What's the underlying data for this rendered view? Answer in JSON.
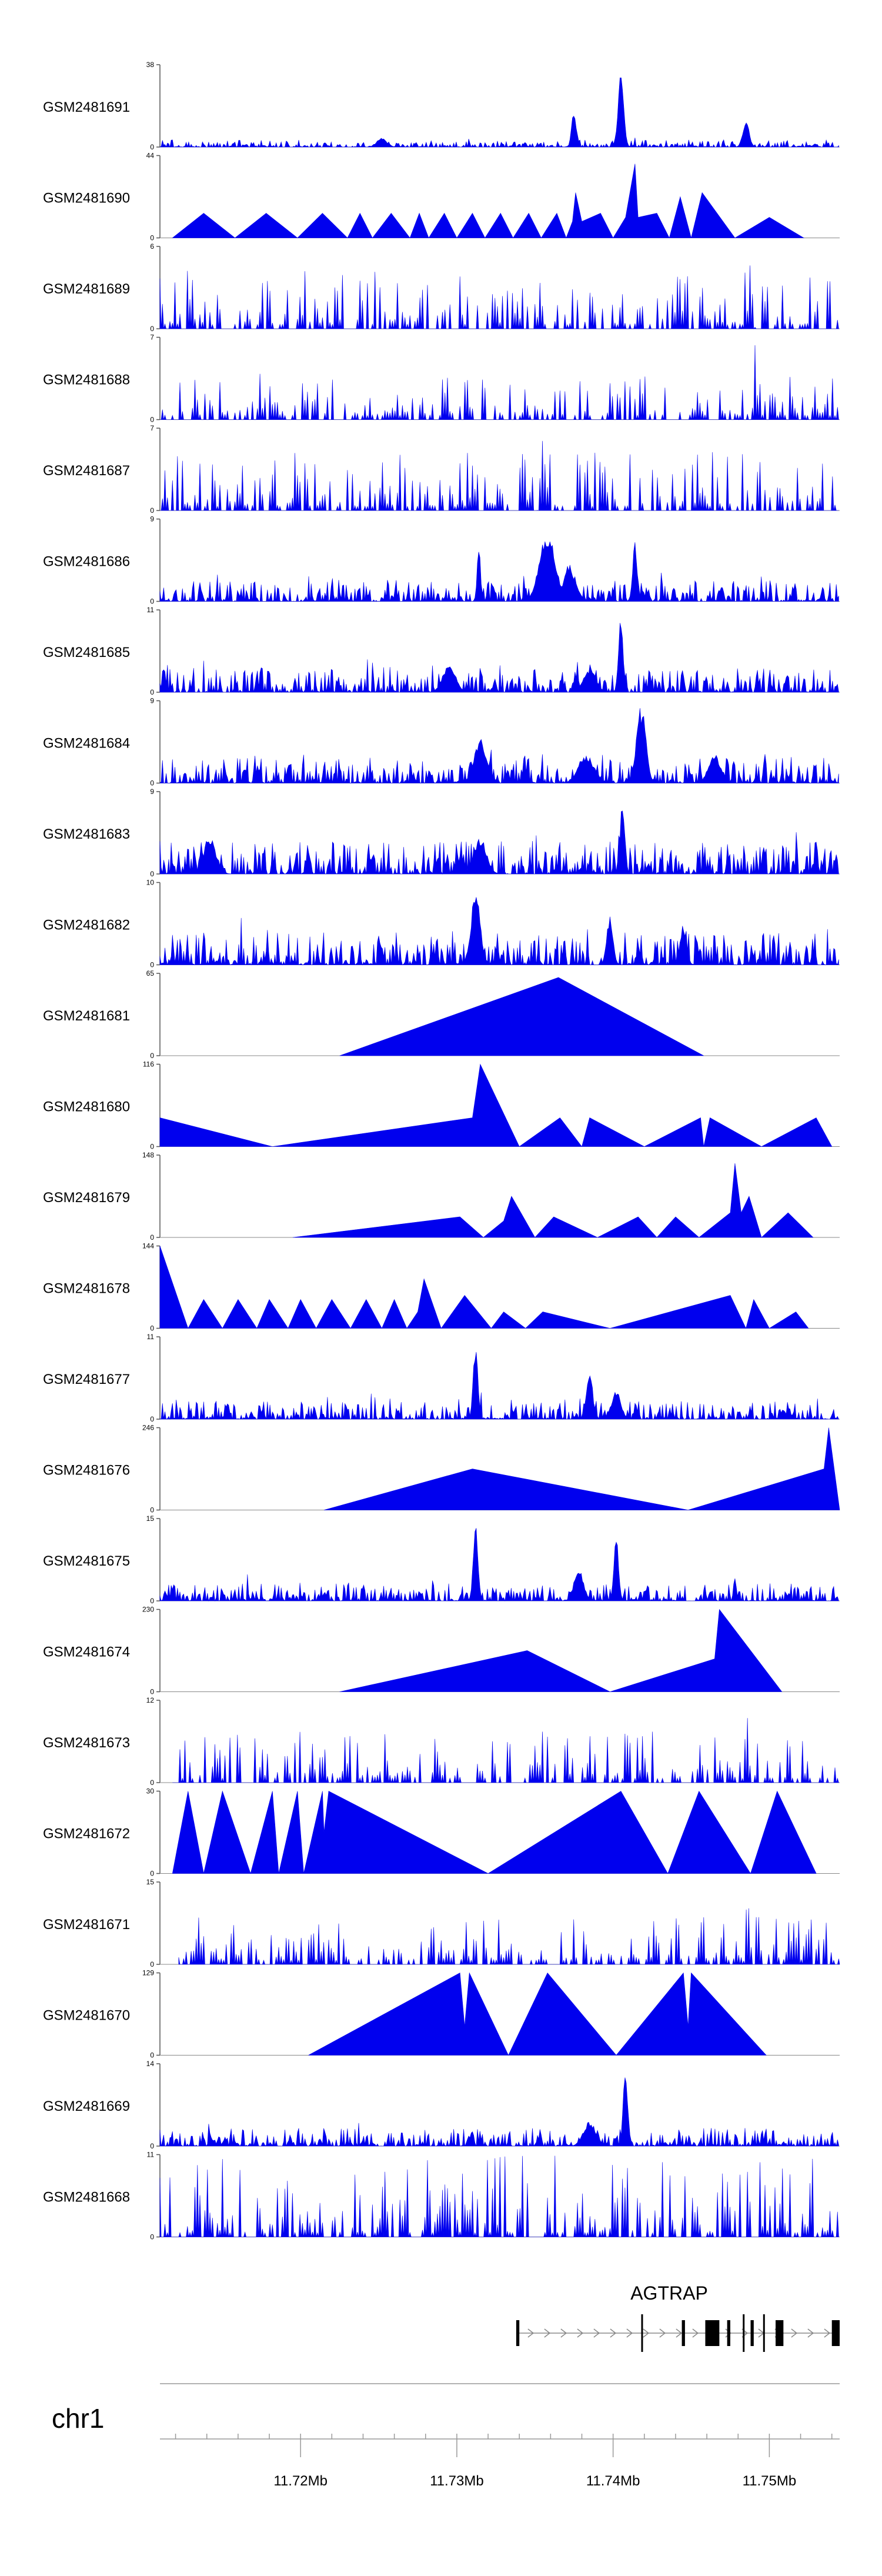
{
  "chart_data": {
    "type": "area",
    "title": "",
    "chromosome": "chr1",
    "region": {
      "start": 11.711,
      "end": 11.7545,
      "unit": "Mb"
    },
    "fill_color": "#0000ee",
    "x_ticks": [
      11.712,
      11.714,
      11.716,
      11.718,
      11.72,
      11.722,
      11.724,
      11.726,
      11.728,
      11.73,
      11.732,
      11.734,
      11.736,
      11.738,
      11.74,
      11.742,
      11.744,
      11.746,
      11.748,
      11.75,
      11.752,
      11.754
    ],
    "x_tick_labels": [
      {
        "pos": 11.72,
        "label": "11.72Mb"
      },
      {
        "pos": 11.73,
        "label": "11.73Mb"
      },
      {
        "pos": 11.74,
        "label": "11.74Mb"
      },
      {
        "pos": 11.75,
        "label": "11.75Mb"
      }
    ],
    "tracks": [
      {
        "name": "GSM2481691",
        "ymax": 38,
        "style": "dense",
        "seed": 91,
        "base": 0.04,
        "range": [
          11.711,
          11.7545
        ],
        "peaks": [
          [
            11.7375,
            0.45,
            0.00015
          ],
          [
            11.7405,
            1.0,
            0.00018
          ],
          [
            11.7485,
            0.35,
            0.0002
          ],
          [
            11.7252,
            0.12,
            0.0003
          ]
        ]
      },
      {
        "name": "GSM2481690",
        "ymax": 44,
        "style": "tri",
        "range": [
          11.7118,
          11.7535
        ],
        "points": [
          [
            11.7118,
            0
          ],
          [
            11.7138,
            0.3
          ],
          [
            11.7158,
            0
          ],
          [
            11.7178,
            0.3
          ],
          [
            11.7198,
            0
          ],
          [
            11.7214,
            0.3
          ],
          [
            11.723,
            0
          ],
          [
            11.7238,
            0.3
          ],
          [
            11.7246,
            0
          ],
          [
            11.7258,
            0.3
          ],
          [
            11.727,
            0
          ],
          [
            11.7276,
            0.3
          ],
          [
            11.7282,
            0
          ],
          [
            11.7292,
            0.3
          ],
          [
            11.73,
            0
          ],
          [
            11.731,
            0.3
          ],
          [
            11.7318,
            0
          ],
          [
            11.7328,
            0.3
          ],
          [
            11.7336,
            0
          ],
          [
            11.7346,
            0.3
          ],
          [
            11.7354,
            0
          ],
          [
            11.7364,
            0.3
          ],
          [
            11.737,
            0
          ],
          [
            11.7374,
            0.2
          ],
          [
            11.7376,
            0.55
          ],
          [
            11.738,
            0.2
          ],
          [
            11.7392,
            0.3
          ],
          [
            11.74,
            0
          ],
          [
            11.7408,
            0.25
          ],
          [
            11.7414,
            0.9
          ],
          [
            11.7416,
            0.25
          ],
          [
            11.7428,
            0.3
          ],
          [
            11.7436,
            0
          ],
          [
            11.7443,
            0.5
          ],
          [
            11.745,
            0
          ],
          [
            11.7457,
            0.55
          ],
          [
            11.7478,
            0
          ],
          [
            11.75,
            0.25
          ],
          [
            11.7522,
            0
          ]
        ]
      },
      {
        "name": "GSM2481689",
        "ymax": 6,
        "style": "spiky",
        "seed": 89,
        "base": 0.35,
        "range": [
          11.711,
          11.7545
        ],
        "peaks": [
          [
            11.7442,
            0.95,
            0.0001
          ],
          [
            11.7488,
            0.9,
            0.0001
          ]
        ]
      },
      {
        "name": "GSM2481688",
        "ymax": 7,
        "style": "spiky",
        "seed": 88,
        "base": 0.25,
        "range": [
          11.711,
          11.7545
        ],
        "peaks": [
          [
            11.7491,
            0.95,
            0.0001
          ],
          [
            11.7174,
            0.6,
            0.0001
          ],
          [
            11.7418,
            0.55,
            0.0001
          ]
        ]
      },
      {
        "name": "GSM2481687",
        "ymax": 7,
        "style": "spiky",
        "seed": 87,
        "base": 0.35,
        "range": [
          11.711,
          11.7545
        ],
        "peaks": [
          [
            11.7355,
            0.95,
            0.0001
          ],
          [
            11.7183,
            0.75,
            0.0001
          ]
        ]
      },
      {
        "name": "GSM2481686",
        "ymax": 9,
        "style": "dense",
        "seed": 86,
        "base": 0.12,
        "range": [
          11.711,
          11.7545
        ],
        "peaks": [
          [
            11.7358,
            0.85,
            0.0005
          ],
          [
            11.7372,
            0.45,
            0.0004
          ],
          [
            11.7414,
            0.75,
            0.00015
          ],
          [
            11.7314,
            0.8,
            0.0001
          ]
        ]
      },
      {
        "name": "GSM2481685",
        "ymax": 11,
        "style": "dense",
        "seed": 85,
        "base": 0.14,
        "range": [
          11.711,
          11.7545
        ],
        "peaks": [
          [
            11.7405,
            0.95,
            0.00015
          ],
          [
            11.7295,
            0.35,
            0.0004
          ],
          [
            11.7385,
            0.3,
            0.0004
          ]
        ]
      },
      {
        "name": "GSM2481684",
        "ymax": 9,
        "style": "dense",
        "seed": 84,
        "base": 0.14,
        "range": [
          11.711,
          11.7545
        ],
        "peaks": [
          [
            11.7418,
            0.95,
            0.0003
          ],
          [
            11.7315,
            0.55,
            0.0004
          ],
          [
            11.7383,
            0.35,
            0.0005
          ],
          [
            11.7465,
            0.35,
            0.0004
          ]
        ]
      },
      {
        "name": "GSM2481683",
        "ymax": 9,
        "style": "dense",
        "seed": 83,
        "base": 0.18,
        "range": [
          11.711,
          11.7545
        ],
        "peaks": [
          [
            11.7406,
            0.95,
            0.00015
          ],
          [
            11.7142,
            0.45,
            0.0004
          ],
          [
            11.7315,
            0.45,
            0.0004
          ]
        ]
      },
      {
        "name": "GSM2481682",
        "ymax": 10,
        "style": "dense",
        "seed": 82,
        "base": 0.18,
        "range": [
          11.711,
          11.7545
        ],
        "peaks": [
          [
            11.7312,
            0.9,
            0.0003
          ],
          [
            11.7398,
            0.6,
            0.0002
          ],
          [
            11.7445,
            0.5,
            0.0002
          ]
        ]
      },
      {
        "name": "GSM2481681",
        "ymax": 65,
        "style": "tri",
        "range": [
          11.7225,
          11.7545
        ],
        "points": [
          [
            11.7225,
            0
          ],
          [
            11.7365,
            0.95
          ],
          [
            11.7458,
            0
          ]
        ]
      },
      {
        "name": "GSM2481680",
        "ymax": 116,
        "style": "tri",
        "range": [
          11.711,
          11.7545
        ],
        "points": [
          [
            11.711,
            0.35
          ],
          [
            11.7182,
            0
          ],
          [
            11.731,
            0.35
          ],
          [
            11.7315,
            1.0
          ],
          [
            11.734,
            0
          ],
          [
            11.7366,
            0.35
          ],
          [
            11.738,
            0
          ],
          [
            11.7385,
            0.35
          ],
          [
            11.742,
            0
          ],
          [
            11.7456,
            0.35
          ],
          [
            11.7458,
            0
          ],
          [
            11.7462,
            0.35
          ],
          [
            11.7495,
            0
          ],
          [
            11.753,
            0.35
          ],
          [
            11.754,
            0
          ]
        ]
      },
      {
        "name": "GSM2481679",
        "ymax": 148,
        "style": "tri",
        "range": [
          11.711,
          11.7545
        ],
        "points": [
          [
            11.7195,
            0
          ],
          [
            11.7302,
            0.25
          ],
          [
            11.7317,
            0
          ],
          [
            11.733,
            0.2
          ],
          [
            11.7335,
            0.5
          ],
          [
            11.735,
            0
          ],
          [
            11.7362,
            0.25
          ],
          [
            11.739,
            0
          ],
          [
            11.7416,
            0.25
          ],
          [
            11.7428,
            0
          ],
          [
            11.744,
            0.25
          ],
          [
            11.7455,
            0
          ],
          [
            11.7475,
            0.3
          ],
          [
            11.7478,
            0.9
          ],
          [
            11.7482,
            0.3
          ],
          [
            11.7487,
            0.5
          ],
          [
            11.7495,
            0
          ],
          [
            11.7512,
            0.3
          ],
          [
            11.752,
            0.15
          ],
          [
            11.7528,
            0
          ]
        ]
      },
      {
        "name": "GSM2481678",
        "ymax": 144,
        "style": "tri",
        "range": [
          11.711,
          11.7545
        ],
        "points": [
          [
            11.711,
            1.0
          ],
          [
            11.7128,
            0
          ],
          [
            11.7138,
            0.35
          ],
          [
            11.715,
            0
          ],
          [
            11.716,
            0.35
          ],
          [
            11.7172,
            0
          ],
          [
            11.718,
            0.35
          ],
          [
            11.7192,
            0
          ],
          [
            11.72,
            0.35
          ],
          [
            11.721,
            0
          ],
          [
            11.722,
            0.35
          ],
          [
            11.7232,
            0
          ],
          [
            11.7242,
            0.35
          ],
          [
            11.7252,
            0
          ],
          [
            11.726,
            0.35
          ],
          [
            11.7268,
            0
          ],
          [
            11.7275,
            0.2
          ],
          [
            11.7279,
            0.6
          ],
          [
            11.729,
            0
          ],
          [
            11.7305,
            0.4
          ],
          [
            11.7322,
            0
          ],
          [
            11.733,
            0.2
          ],
          [
            11.7344,
            0
          ],
          [
            11.7355,
            0.2
          ],
          [
            11.7398,
            0
          ],
          [
            11.7475,
            0.4
          ],
          [
            11.7485,
            0
          ],
          [
            11.749,
            0.35
          ],
          [
            11.75,
            0
          ],
          [
            11.7517,
            0.2
          ],
          [
            11.7525,
            0
          ]
        ]
      },
      {
        "name": "GSM2481677",
        "ymax": 11,
        "style": "dense",
        "seed": 77,
        "base": 0.1,
        "range": [
          11.711,
          11.7545
        ],
        "peaks": [
          [
            11.7312,
            0.95,
            0.00015
          ],
          [
            11.7385,
            0.6,
            0.0002
          ],
          [
            11.7402,
            0.35,
            0.0003
          ]
        ]
      },
      {
        "name": "GSM2481676",
        "ymax": 246,
        "style": "tri",
        "range": [
          11.711,
          11.7545
        ],
        "points": [
          [
            11.7215,
            0
          ],
          [
            11.731,
            0.5
          ],
          [
            11.7448,
            0
          ],
          [
            11.7535,
            0.5
          ],
          [
            11.7538,
            1.0
          ],
          [
            11.7545,
            0
          ]
        ]
      },
      {
        "name": "GSM2481675",
        "ymax": 15,
        "style": "dense",
        "seed": 75,
        "base": 0.1,
        "range": [
          11.711,
          11.7545
        ],
        "peaks": [
          [
            11.7312,
            0.95,
            0.00015
          ],
          [
            11.7402,
            0.8,
            0.00015
          ],
          [
            11.7378,
            0.4,
            0.0003
          ]
        ]
      },
      {
        "name": "GSM2481674",
        "ymax": 230,
        "style": "tri",
        "range": [
          11.711,
          11.7545
        ],
        "points": [
          [
            11.7225,
            0
          ],
          [
            11.7345,
            0.5
          ],
          [
            11.7398,
            0
          ],
          [
            11.7465,
            0.4
          ],
          [
            11.7468,
            1.0
          ],
          [
            11.7508,
            0
          ]
        ]
      },
      {
        "name": "GSM2481673",
        "ymax": 12,
        "style": "spiky",
        "seed": 73,
        "base": 0.3,
        "range": [
          11.7118,
          11.7545
        ],
        "peaks": [
          [
            11.7486,
            0.95,
            0.0001
          ],
          [
            11.7385,
            0.7,
            0.0001
          ]
        ]
      },
      {
        "name": "GSM2481672",
        "ymax": 30,
        "style": "tri",
        "range": [
          11.711,
          11.7545
        ],
        "points": [
          [
            11.7118,
            0
          ],
          [
            11.7128,
            1.0
          ],
          [
            11.7138,
            0
          ],
          [
            11.715,
            1.0
          ],
          [
            11.7168,
            0
          ],
          [
            11.7182,
            1.0
          ],
          [
            11.7186,
            0
          ],
          [
            11.7198,
            1.0
          ],
          [
            11.7202,
            0
          ],
          [
            11.7214,
            1.0
          ],
          [
            11.7215,
            0.5
          ],
          [
            11.7218,
            1.0
          ],
          [
            11.732,
            0
          ],
          [
            11.7405,
            1.0
          ],
          [
            11.7435,
            0
          ],
          [
            11.7455,
            1.0
          ],
          [
            11.7488,
            0
          ],
          [
            11.7505,
            1.0
          ],
          [
            11.753,
            0
          ]
        ]
      },
      {
        "name": "GSM2481671",
        "ymax": 15,
        "style": "spiky",
        "seed": 71,
        "base": 0.28,
        "range": [
          11.7122,
          11.7545
        ],
        "peaks": [
          [
            11.7486,
            0.95,
            0.0001
          ],
          [
            11.7135,
            0.7,
            0.0001
          ]
        ]
      },
      {
        "name": "GSM2481670",
        "ymax": 129,
        "style": "tri",
        "range": [
          11.711,
          11.7545
        ],
        "points": [
          [
            11.7205,
            0
          ],
          [
            11.7302,
            1.0
          ],
          [
            11.7305,
            0.35
          ],
          [
            11.7308,
            1.0
          ],
          [
            11.7333,
            0
          ],
          [
            11.7358,
            1.0
          ],
          [
            11.7402,
            0
          ],
          [
            11.7445,
            1.0
          ],
          [
            11.7448,
            0.35
          ],
          [
            11.745,
            1.0
          ],
          [
            11.7498,
            0
          ]
        ]
      },
      {
        "name": "GSM2481669",
        "ymax": 14,
        "style": "dense",
        "seed": 69,
        "base": 0.1,
        "range": [
          11.711,
          11.7545
        ],
        "peaks": [
          [
            11.7408,
            0.95,
            0.00015
          ],
          [
            11.7385,
            0.3,
            0.0004
          ]
        ]
      },
      {
        "name": "GSM2481668",
        "ymax": 11,
        "style": "spiky",
        "seed": 68,
        "base": 0.5,
        "range": [
          11.711,
          11.7545
        ],
        "peaks": [
          [
            11.74,
            0.95,
            0.0001
          ]
        ]
      }
    ],
    "gene_track": {
      "gene": "AGTRAP",
      "span": [
        11.7338,
        11.7545
      ],
      "exons": [
        [
          11.7338,
          11.734
        ],
        [
          11.7444,
          11.7446
        ],
        [
          11.7459,
          11.7468
        ],
        [
          11.7473,
          11.7475
        ],
        [
          11.7488,
          11.749
        ],
        [
          11.7504,
          11.7509
        ],
        [
          11.754,
          11.7545
        ]
      ],
      "thin_exons": [
        [
          11.7418,
          11.7419
        ],
        [
          11.7483,
          11.7484
        ],
        [
          11.7496,
          11.7497
        ]
      ]
    }
  }
}
